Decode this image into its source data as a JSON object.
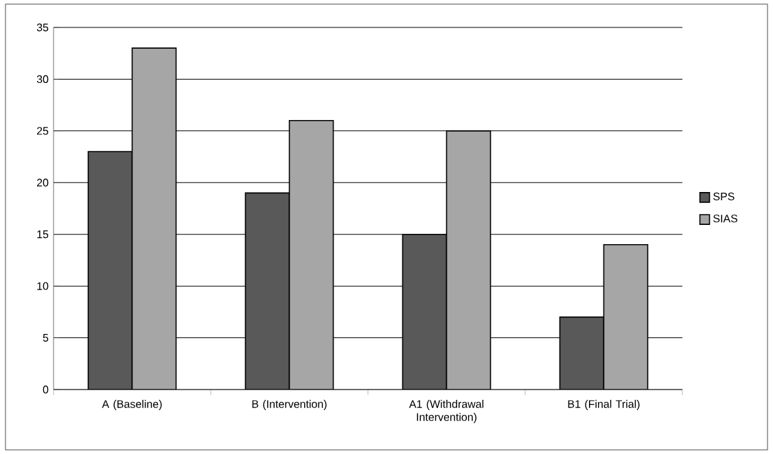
{
  "chart_data": {
    "type": "bar",
    "categories": [
      "A (Baseline)",
      "B (Intervention)",
      "A1 (Withdrawal Intervention)",
      "B1 (Final Trial)"
    ],
    "series": [
      {
        "name": "SPS",
        "color": "#595959",
        "values": [
          23,
          19,
          15,
          7
        ]
      },
      {
        "name": "SIAS",
        "color": "#a6a6a6",
        "values": [
          33,
          26,
          25,
          14
        ]
      }
    ],
    "ylim": [
      0,
      35
    ],
    "yticks": [
      0,
      5,
      10,
      15,
      20,
      25,
      30,
      35
    ],
    "grid": "y",
    "legend": "right"
  }
}
